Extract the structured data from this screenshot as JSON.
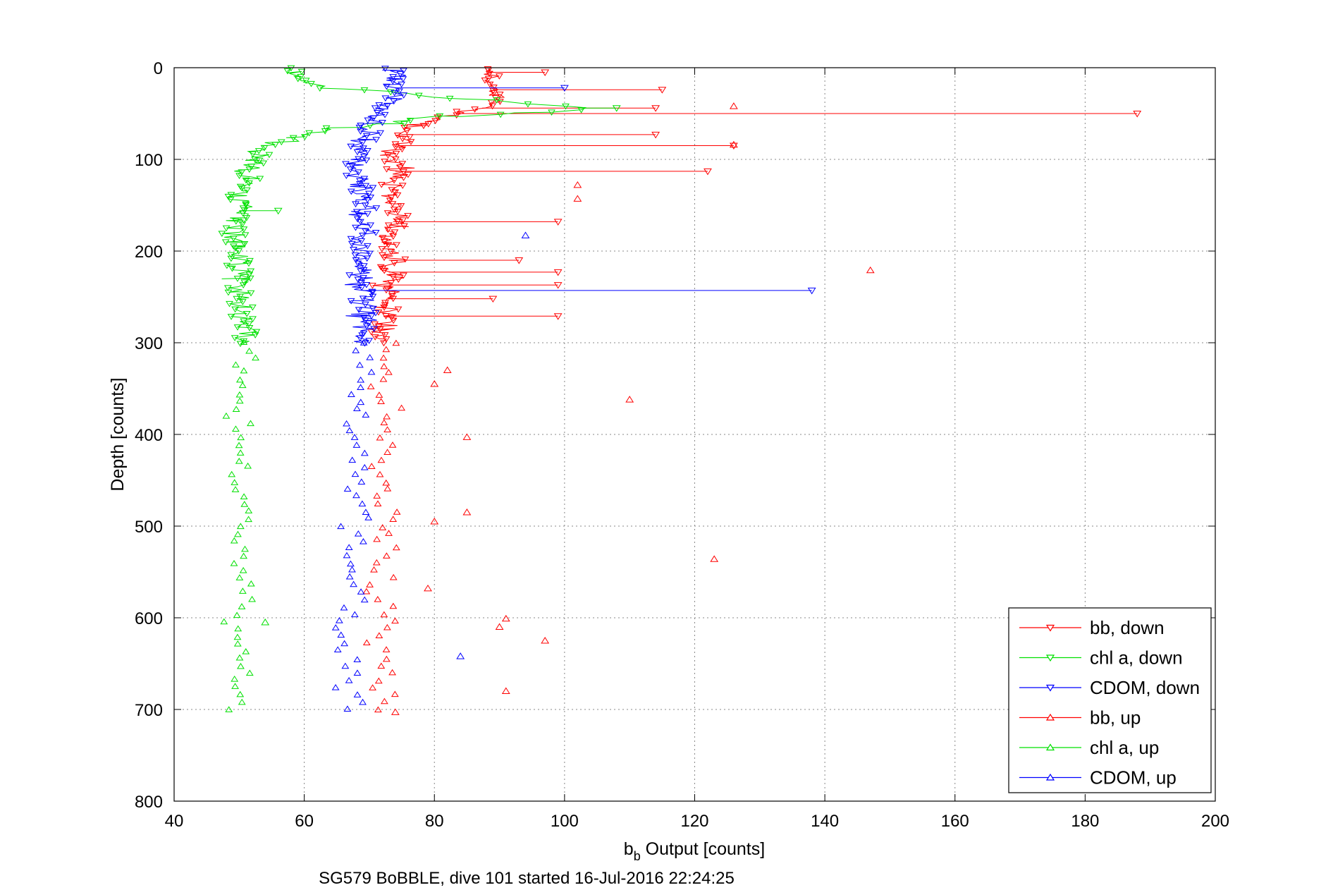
{
  "chart_data": {
    "type": "scatter",
    "xlabel_main": "b",
    "xlabel_sub": "b",
    "xlabel_rest": " Output [counts]",
    "ylabel": "Depth [counts]",
    "caption": "SG579 BoBBLE, dive 101 started 16-Jul-2016 22:24:25",
    "xlim": [
      40,
      200
    ],
    "ylim": [
      0,
      800
    ],
    "y_reversed": true,
    "grid": true,
    "legend_position": "bottom-right",
    "xticks": [
      "40",
      "60",
      "80",
      "100",
      "120",
      "140",
      "160",
      "180",
      "200"
    ],
    "yticks": [
      "0",
      "100",
      "200",
      "300",
      "400",
      "500",
      "600",
      "700",
      "800"
    ],
    "series": [
      {
        "name": "bb, down",
        "color": "#ff0000",
        "marker": "triangle-down",
        "profile": [
          [
            0,
            88
          ],
          [
            20,
            89
          ],
          [
            40,
            90
          ],
          [
            55,
            80
          ],
          [
            70,
            75
          ],
          [
            100,
            74
          ],
          [
            150,
            74
          ],
          [
            200,
            73
          ],
          [
            250,
            73
          ],
          [
            300,
            72
          ]
        ],
        "spikes": [
          [
            5,
            97
          ],
          [
            24,
            115
          ],
          [
            44,
            114
          ],
          [
            50,
            188
          ],
          [
            73,
            114
          ],
          [
            85,
            126
          ],
          [
            113,
            122
          ],
          [
            168,
            99
          ],
          [
            210,
            93
          ],
          [
            223,
            99
          ],
          [
            237,
            99
          ],
          [
            252,
            89
          ],
          [
            271,
            99
          ]
        ]
      },
      {
        "name": "chl a, down",
        "color": "#00e000",
        "marker": "triangle-down",
        "profile": [
          [
            0,
            57
          ],
          [
            20,
            62
          ],
          [
            40,
            95
          ],
          [
            45,
            104
          ],
          [
            55,
            78
          ],
          [
            70,
            62
          ],
          [
            85,
            55
          ],
          [
            100,
            52
          ],
          [
            150,
            50
          ],
          [
            200,
            50
          ],
          [
            250,
            50
          ],
          [
            300,
            51
          ]
        ],
        "spikes": [
          [
            44,
            108
          ],
          [
            156,
            56
          ]
        ]
      },
      {
        "name": "CDOM, down",
        "color": "#0000ff",
        "marker": "triangle-down",
        "profile": [
          [
            0,
            73
          ],
          [
            20,
            74
          ],
          [
            40,
            73
          ],
          [
            55,
            70
          ],
          [
            70,
            69
          ],
          [
            100,
            68
          ],
          [
            150,
            69
          ],
          [
            200,
            69
          ],
          [
            250,
            69
          ],
          [
            300,
            69
          ]
        ],
        "spikes": [
          [
            22,
            100
          ],
          [
            243,
            138
          ]
        ]
      },
      {
        "name": "bb, up",
        "color": "#ff0000",
        "marker": "triangle-up",
        "profile": [
          [
            300,
            73
          ],
          [
            400,
            72
          ],
          [
            500,
            72
          ],
          [
            600,
            72
          ],
          [
            700,
            72
          ]
        ],
        "spikes": [
          [
            42,
            126
          ],
          [
            84,
            126
          ],
          [
            128,
            102
          ],
          [
            143,
            102
          ],
          [
            221,
            147
          ],
          [
            330,
            82
          ],
          [
            345,
            80
          ],
          [
            362,
            110
          ],
          [
            403,
            85
          ],
          [
            485,
            85
          ],
          [
            495,
            80
          ],
          [
            536,
            123
          ],
          [
            568,
            79
          ],
          [
            601,
            91
          ],
          [
            610,
            90
          ],
          [
            625,
            97
          ],
          [
            680,
            91
          ],
          [
            703,
            74
          ]
        ]
      },
      {
        "name": "chl a, up",
        "color": "#00e000",
        "marker": "triangle-up",
        "profile": [
          [
            300,
            51
          ],
          [
            400,
            50
          ],
          [
            500,
            50
          ],
          [
            600,
            50
          ],
          [
            700,
            50
          ]
        ],
        "spikes": [
          [
            605,
            54
          ]
        ]
      },
      {
        "name": "CDOM, up",
        "color": "#0000ff",
        "marker": "triangle-up",
        "profile": [
          [
            300,
            68
          ],
          [
            400,
            68
          ],
          [
            500,
            68
          ],
          [
            600,
            67
          ],
          [
            700,
            67
          ]
        ],
        "spikes": [
          [
            183,
            94
          ],
          [
            642,
            84
          ]
        ]
      }
    ]
  }
}
